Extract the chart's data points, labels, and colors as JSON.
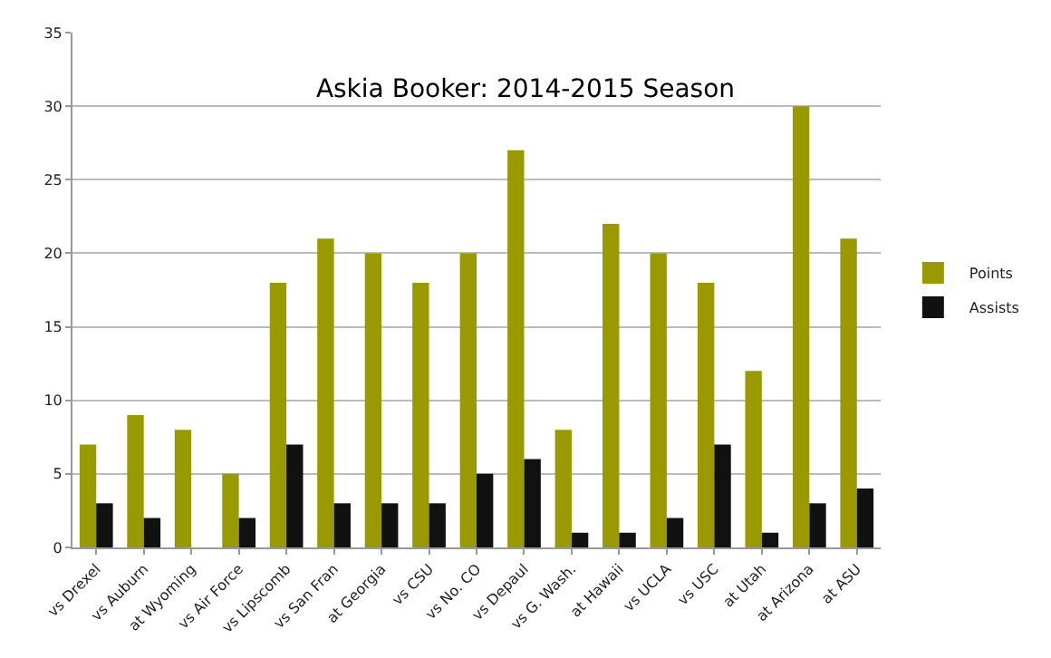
{
  "chart_data": {
    "type": "bar",
    "title": "Askia Booker: 2014-2015 Season",
    "categories": [
      "vs Drexel",
      "vs Auburn",
      "at Wyoming",
      "vs Air Force",
      "vs Lipscomb",
      "vs San Fran",
      "at Georgia",
      "vs CSU",
      "vs No. CO",
      "vs Depaul",
      "vs G. Wash.",
      "at Hawaii",
      "vs UCLA",
      "vs USC",
      "at Utah",
      "at Arizona",
      "at ASU"
    ],
    "series": [
      {
        "name": "Points",
        "color": "#999900",
        "values": [
          7,
          9,
          8,
          5,
          18,
          21,
          20,
          18,
          20,
          27,
          8,
          22,
          20,
          18,
          12,
          30,
          21
        ]
      },
      {
        "name": "Assists",
        "color": "#111111",
        "values": [
          3,
          2,
          0,
          2,
          7,
          3,
          3,
          3,
          5,
          6,
          1,
          1,
          2,
          7,
          1,
          3,
          4
        ]
      }
    ],
    "ylim": [
      0,
      35
    ],
    "yticks": [
      0,
      5,
      10,
      15,
      20,
      25,
      30,
      35
    ],
    "grid": "y",
    "legend": "right"
  }
}
